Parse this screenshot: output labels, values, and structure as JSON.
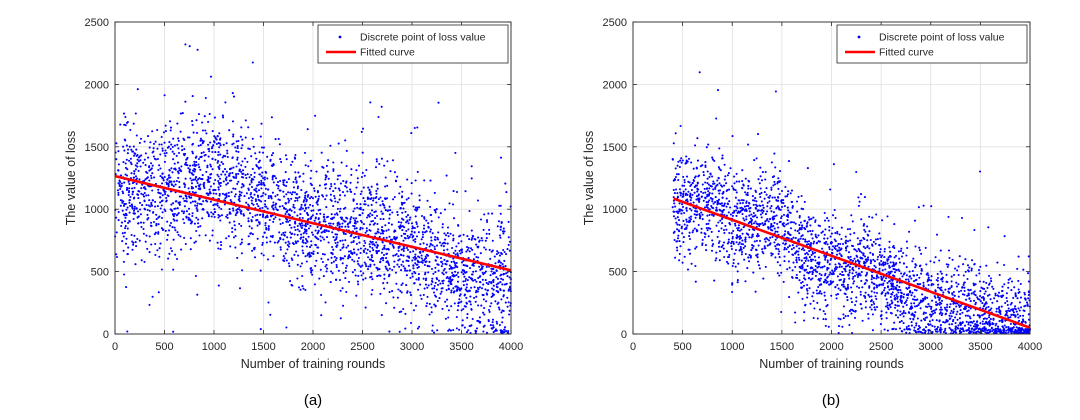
{
  "colors": {
    "scatter": "#0000ff",
    "fit": "#ff0000",
    "grid": "#dfdfdf",
    "axis": "#262626"
  },
  "chart_data": [
    {
      "type": "scatter",
      "panel_label": "(a)",
      "xlabel": "Number of training rounds",
      "ylabel": "The value of loss",
      "xlim": [
        0,
        4000
      ],
      "ylim": [
        0,
        2500
      ],
      "xticks": [
        0,
        500,
        1000,
        1500,
        2000,
        2500,
        3000,
        3500,
        4000
      ],
      "yticks": [
        0,
        500,
        1000,
        1500,
        2000,
        2500
      ],
      "grid": true,
      "legend_position": "top-right",
      "series": [
        {
          "name": "Discrete point of loss value",
          "kind": "scatter",
          "x_range": [
            0,
            4000
          ],
          "n_points": 3000,
          "trend_y": [
            [
              0,
              1150
            ],
            [
              500,
              1150
            ],
            [
              1000,
              1250
            ],
            [
              1500,
              1050
            ],
            [
              2000,
              880
            ],
            [
              2500,
              850
            ],
            [
              3000,
              700
            ],
            [
              3500,
              500
            ],
            [
              4000,
              420
            ]
          ],
          "spread": 260,
          "seed": 7
        },
        {
          "name": "Fitted curve",
          "kind": "line",
          "x": [
            0,
            4000
          ],
          "y": [
            1265,
            510
          ]
        }
      ]
    },
    {
      "type": "scatter",
      "panel_label": "(b)",
      "xlabel": "Number of training rounds",
      "ylabel": "The value of loss",
      "xlim": [
        0,
        4000
      ],
      "ylim": [
        0,
        2500
      ],
      "xticks": [
        0,
        500,
        1000,
        1500,
        2000,
        2500,
        3000,
        3500,
        4000
      ],
      "yticks": [
        0,
        500,
        1000,
        1500,
        2000,
        2500
      ],
      "grid": true,
      "legend_position": "top-right",
      "series": [
        {
          "name": "Discrete point of loss value",
          "kind": "scatter",
          "x_range": [
            400,
            4000
          ],
          "n_points": 2700,
          "trend_y": [
            [
              400,
              1000
            ],
            [
              800,
              1050
            ],
            [
              1000,
              900
            ],
            [
              1500,
              900
            ],
            [
              1700,
              650
            ],
            [
              2000,
              550
            ],
            [
              2500,
              500
            ],
            [
              2700,
              350
            ],
            [
              3000,
              250
            ],
            [
              3500,
              150
            ],
            [
              4000,
              80
            ]
          ],
          "spread": 200,
          "seed": 11
        },
        {
          "name": "Fitted curve",
          "kind": "line",
          "x": [
            410,
            4000
          ],
          "y": [
            1085,
            50
          ]
        }
      ]
    }
  ]
}
